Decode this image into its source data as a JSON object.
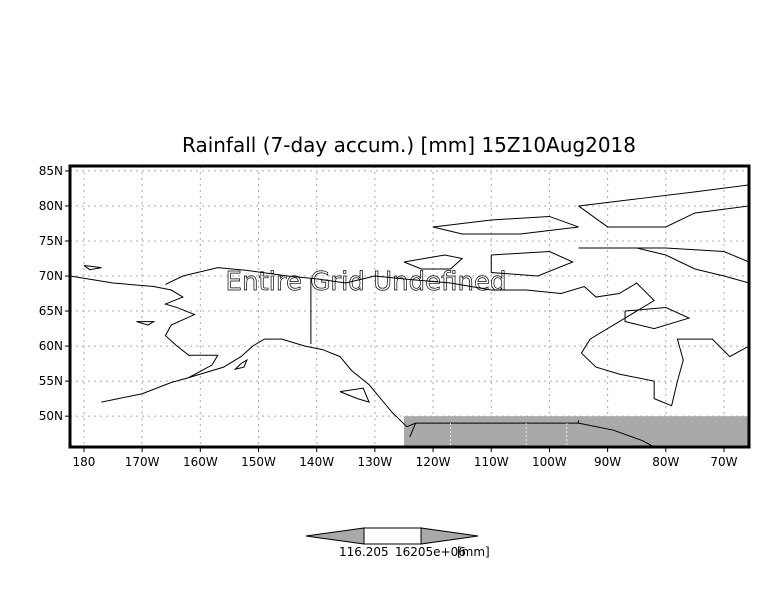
{
  "chart_data": {
    "type": "heatmap",
    "title": "Rainfall (7-day accum.) [mm] 15Z10Aug2018",
    "annotation": "Entire Grid Undefined",
    "xlabel": "",
    "ylabel": "",
    "xlim": [
      -182.4,
      -65.7
    ],
    "ylim": [
      45.6,
      85.7
    ],
    "grid": true,
    "x_ticks": [
      {
        "value": -180,
        "label": "180"
      },
      {
        "value": -170,
        "label": "170W"
      },
      {
        "value": -160,
        "label": "160W"
      },
      {
        "value": -150,
        "label": "150W"
      },
      {
        "value": -140,
        "label": "140W"
      },
      {
        "value": -130,
        "label": "130W"
      },
      {
        "value": -120,
        "label": "120W"
      },
      {
        "value": -110,
        "label": "110W"
      },
      {
        "value": -100,
        "label": "100W"
      },
      {
        "value": -90,
        "label": "90W"
      },
      {
        "value": -80,
        "label": "80W"
      },
      {
        "value": -70,
        "label": "70W"
      }
    ],
    "y_ticks": [
      {
        "value": 85,
        "label": "85N"
      },
      {
        "value": 80,
        "label": "80N"
      },
      {
        "value": 75,
        "label": "75N"
      },
      {
        "value": 70,
        "label": "70N"
      },
      {
        "value": 65,
        "label": "65N"
      },
      {
        "value": 60,
        "label": "60N"
      },
      {
        "value": 55,
        "label": "55N"
      },
      {
        "value": 50,
        "label": "50N"
      }
    ],
    "undefined_region": {
      "lon": [
        -125,
        -65.7
      ],
      "lat": [
        45.6,
        50
      ],
      "color": "#a9a9a9"
    },
    "colorbar": {
      "labels": [
        "116.205",
        "16205e+06"
      ],
      "unit": "[mm]",
      "fill_color": "#a9a9a9"
    }
  }
}
